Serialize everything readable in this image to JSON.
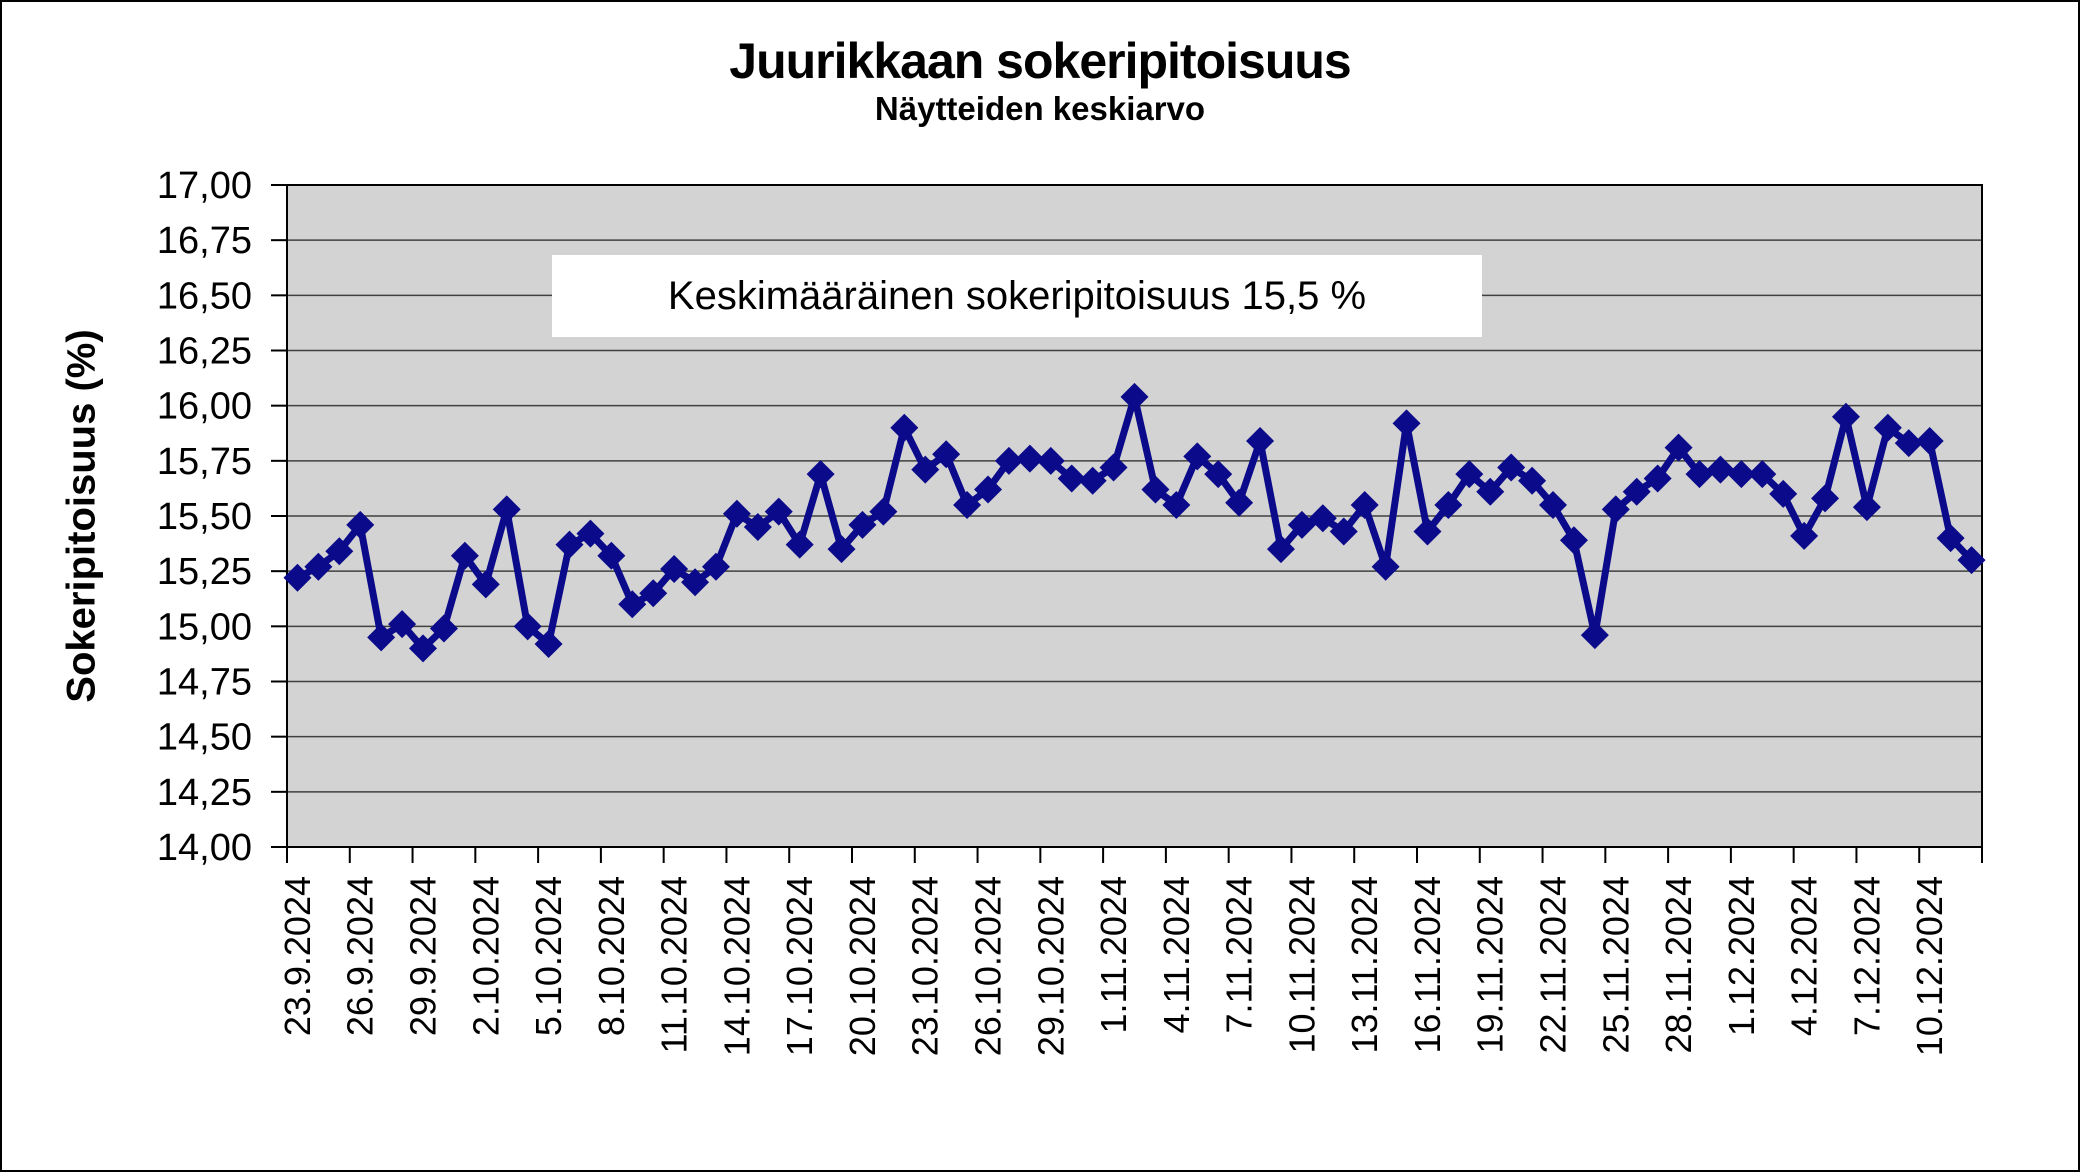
{
  "chart_data": {
    "type": "line",
    "title": "Juurikkaan sokeripitoisuus",
    "subtitle": "Näytteiden keskiarvo",
    "ylabel": "Sokeripitoisuus (%)",
    "xlabel": "",
    "annotation": "Keskimääräinen sokeripitoisuus 15,5 %",
    "ylim": [
      14.0,
      17.0
    ],
    "y_tick_step": 0.25,
    "y_tick_labels": [
      "17,00",
      "16,75",
      "16,50",
      "16,25",
      "16,00",
      "15,75",
      "15,50",
      "15,25",
      "15,00",
      "14,75",
      "14,50",
      "14,25",
      "14,00"
    ],
    "x_tick_every": 3,
    "x_tick_labels": [
      "23.9.2024",
      "26.9.2024",
      "29.9.2024",
      "2.10.2024",
      "5.10.2024",
      "8.10.2024",
      "11.10.2024",
      "14.10.2024",
      "17.10.2024",
      "20.10.2024",
      "23.10.2024",
      "26.10.2024",
      "29.10.2024",
      "1.11.2024",
      "4.11.2024",
      "7.11.2024",
      "10.11.2024",
      "13.11.2024",
      "16.11.2024",
      "19.11.2024",
      "22.11.2024",
      "25.11.2024",
      "28.11.2024",
      "1.12.2024",
      "4.12.2024",
      "7.12.2024",
      "10.12.2024"
    ],
    "grid": "horizontal",
    "legend": "none",
    "marker": "diamond",
    "colors": {
      "series": "#0a0a8a",
      "plot_bg": "#d3d3d3",
      "gridline": "#404040",
      "axis": "#000000"
    },
    "x": [
      "23.9.2024",
      "24.9.2024",
      "25.9.2024",
      "26.9.2024",
      "27.9.2024",
      "28.9.2024",
      "29.9.2024",
      "30.9.2024",
      "1.10.2024",
      "2.10.2024",
      "3.10.2024",
      "4.10.2024",
      "5.10.2024",
      "6.10.2024",
      "7.10.2024",
      "8.10.2024",
      "9.10.2024",
      "10.10.2024",
      "11.10.2024",
      "12.10.2024",
      "13.10.2024",
      "14.10.2024",
      "15.10.2024",
      "16.10.2024",
      "17.10.2024",
      "18.10.2024",
      "19.10.2024",
      "20.10.2024",
      "21.10.2024",
      "22.10.2024",
      "23.10.2024",
      "24.10.2024",
      "25.10.2024",
      "26.10.2024",
      "27.10.2024",
      "28.10.2024",
      "29.10.2024",
      "30.10.2024",
      "31.10.2024",
      "1.11.2024",
      "2.11.2024",
      "3.11.2024",
      "4.11.2024",
      "5.11.2024",
      "6.11.2024",
      "7.11.2024",
      "8.11.2024",
      "9.11.2024",
      "10.11.2024",
      "11.11.2024",
      "12.11.2024",
      "13.11.2024",
      "14.11.2024",
      "15.11.2024",
      "16.11.2024",
      "17.11.2024",
      "18.11.2024",
      "19.11.2024",
      "20.11.2024",
      "21.11.2024",
      "22.11.2024",
      "23.11.2024",
      "24.11.2024",
      "25.11.2024",
      "26.11.2024",
      "27.11.2024",
      "28.11.2024",
      "29.11.2024",
      "30.11.2024",
      "1.12.2024",
      "2.12.2024",
      "3.12.2024",
      "4.12.2024",
      "5.12.2024",
      "6.12.2024",
      "7.12.2024",
      "8.12.2024",
      "9.12.2024",
      "10.12.2024",
      "11.12.2024",
      "12.12.2024"
    ],
    "values": [
      15.22,
      15.27,
      15.34,
      15.46,
      14.95,
      15.01,
      14.9,
      14.99,
      15.32,
      15.19,
      15.53,
      15.0,
      14.92,
      15.37,
      15.42,
      15.32,
      15.1,
      15.15,
      15.26,
      15.2,
      15.27,
      15.51,
      15.45,
      15.52,
      15.37,
      15.69,
      15.35,
      15.46,
      15.52,
      15.9,
      15.71,
      15.78,
      15.55,
      15.62,
      15.75,
      15.76,
      15.75,
      15.67,
      15.66,
      15.72,
      16.04,
      15.62,
      15.55,
      15.77,
      15.69,
      15.56,
      15.84,
      15.35,
      15.46,
      15.49,
      15.43,
      15.55,
      15.27,
      15.92,
      15.43,
      15.55,
      15.69,
      15.61,
      15.72,
      15.66,
      15.55,
      15.39,
      14.96,
      15.53,
      15.61,
      15.67,
      15.81,
      15.69,
      15.71,
      15.69,
      15.69,
      15.6,
      15.41,
      15.58,
      15.95,
      15.54,
      15.9,
      15.83,
      15.84,
      15.4,
      15.3
    ]
  }
}
